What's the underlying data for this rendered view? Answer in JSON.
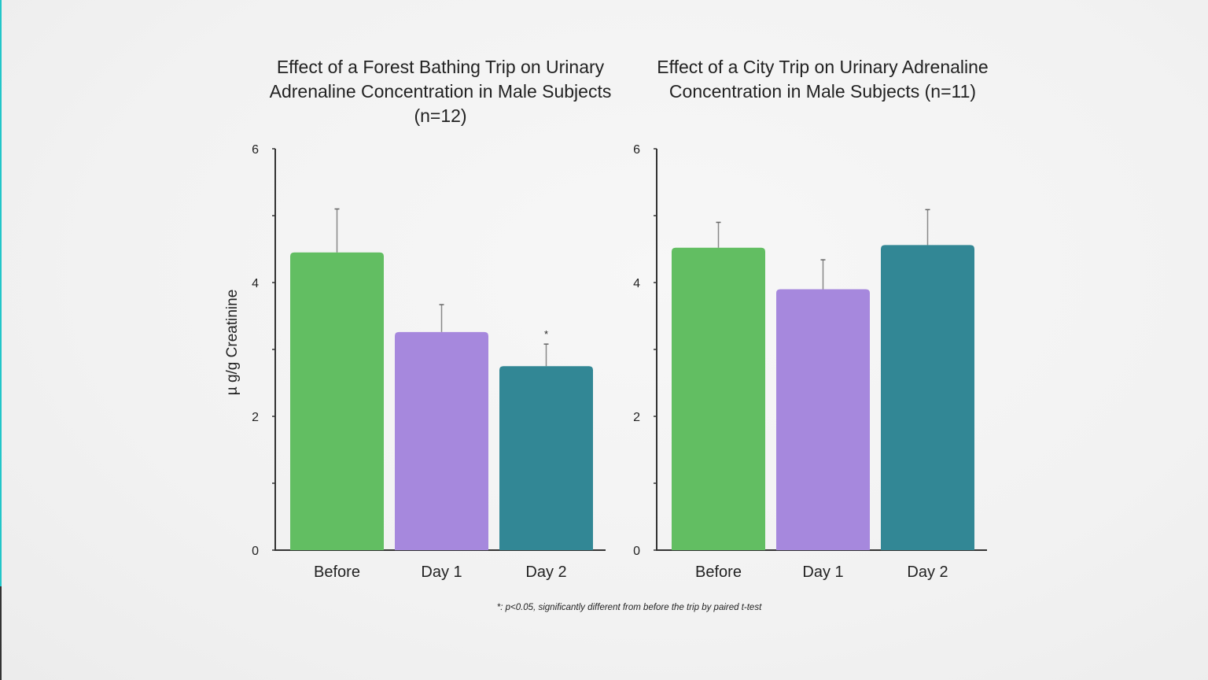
{
  "chart_data": [
    {
      "type": "bar",
      "title": "Effect of a Forest Bathing Trip on Urinary Adrenaline Concentration in Male Subjects (n=12)",
      "ylabel": "µ g/g Creatinine",
      "xlabel": "",
      "ylim": [
        0,
        6
      ],
      "yticks": [
        0,
        2,
        4,
        6
      ],
      "categories": [
        "Before",
        "Day 1",
        "Day 2"
      ],
      "values": [
        4.45,
        3.26,
        2.75
      ],
      "error_upper": [
        5.1,
        3.67,
        3.08
      ],
      "annotations": [
        "",
        "",
        "*"
      ],
      "colors": [
        "#62be62",
        "#a688dd",
        "#328795"
      ]
    },
    {
      "type": "bar",
      "title": "Effect of a City Trip on Urinary Adrenaline Concentration in Male Subjects (n=11)",
      "ylabel": "",
      "xlabel": "",
      "ylim": [
        0,
        6
      ],
      "yticks": [
        0,
        2,
        4,
        6
      ],
      "categories": [
        "Before",
        "Day 1",
        "Day 2"
      ],
      "values": [
        4.52,
        3.9,
        4.56
      ],
      "error_upper": [
        4.9,
        4.34,
        5.09
      ],
      "annotations": [
        "",
        "",
        ""
      ],
      "colors": [
        "#62be62",
        "#a688dd",
        "#328795"
      ]
    }
  ],
  "footnote": "*: p<0.05, significantly different from before the trip by paired t-test"
}
